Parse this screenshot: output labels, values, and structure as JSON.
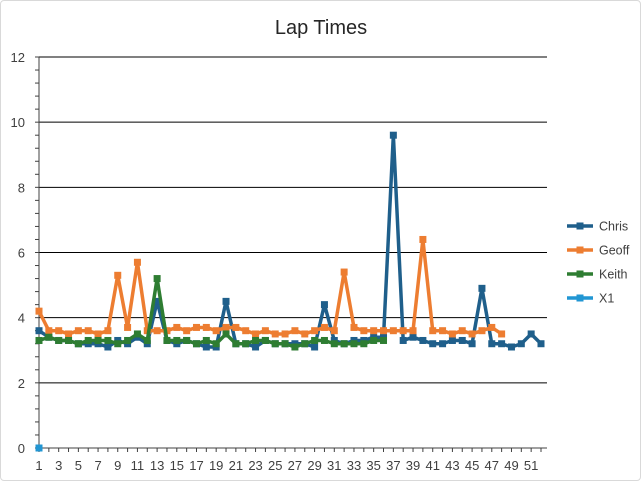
{
  "chart_data": {
    "type": "line",
    "title": "Lap Times",
    "xlabel": "",
    "ylabel": "",
    "ylim": [
      0,
      12
    ],
    "y_ticks": [
      0,
      2,
      4,
      6,
      8,
      10,
      12
    ],
    "x_ticks": [
      1,
      3,
      5,
      7,
      9,
      11,
      13,
      15,
      17,
      19,
      21,
      23,
      25,
      27,
      29,
      31,
      33,
      35,
      37,
      39,
      41,
      43,
      45,
      47,
      49,
      51
    ],
    "x_range": [
      1,
      52
    ],
    "grid": true,
    "legend_position": "right",
    "series": [
      {
        "name": "Chris",
        "color": "#1f5f8b",
        "values": [
          3.6,
          3.4,
          3.3,
          3.3,
          3.2,
          3.2,
          3.2,
          3.1,
          3.3,
          3.2,
          3.4,
          3.2,
          4.5,
          3.3,
          3.2,
          3.3,
          3.2,
          3.1,
          3.1,
          4.5,
          3.2,
          3.2,
          3.1,
          3.3,
          3.2,
          3.2,
          3.2,
          3.2,
          3.1,
          4.4,
          3.3,
          3.2,
          3.3,
          3.3,
          3.4,
          3.4,
          9.6,
          3.3,
          3.4,
          3.3,
          3.2,
          3.2,
          3.3,
          3.3,
          3.2,
          4.9,
          3.2,
          3.2,
          3.1,
          3.2,
          3.5,
          3.2
        ]
      },
      {
        "name": "Geoff",
        "color": "#ed7d31",
        "values": [
          4.2,
          3.6,
          3.6,
          3.5,
          3.6,
          3.6,
          3.5,
          3.6,
          5.3,
          3.7,
          5.7,
          3.6,
          3.6,
          3.6,
          3.7,
          3.6,
          3.7,
          3.7,
          3.6,
          3.7,
          3.7,
          3.6,
          3.5,
          3.6,
          3.5,
          3.5,
          3.6,
          3.5,
          3.6,
          3.7,
          3.6,
          5.4,
          3.7,
          3.6,
          3.6,
          3.6,
          3.6,
          3.6,
          3.6,
          6.4,
          3.6,
          3.6,
          3.5,
          3.6,
          3.5,
          3.6,
          3.7,
          3.5
        ]
      },
      {
        "name": "Keith",
        "color": "#2e7d32",
        "values": [
          3.3,
          3.4,
          3.3,
          3.3,
          3.2,
          3.3,
          3.3,
          3.3,
          3.2,
          3.3,
          3.5,
          3.3,
          5.2,
          3.3,
          3.3,
          3.3,
          3.2,
          3.3,
          3.2,
          3.5,
          3.2,
          3.2,
          3.3,
          3.3,
          3.2,
          3.2,
          3.1,
          3.2,
          3.3,
          3.3,
          3.2,
          3.2,
          3.2,
          3.2,
          3.3,
          3.3
        ]
      },
      {
        "name": "X1",
        "color": "#2196d3",
        "values": [
          0
        ]
      }
    ]
  }
}
